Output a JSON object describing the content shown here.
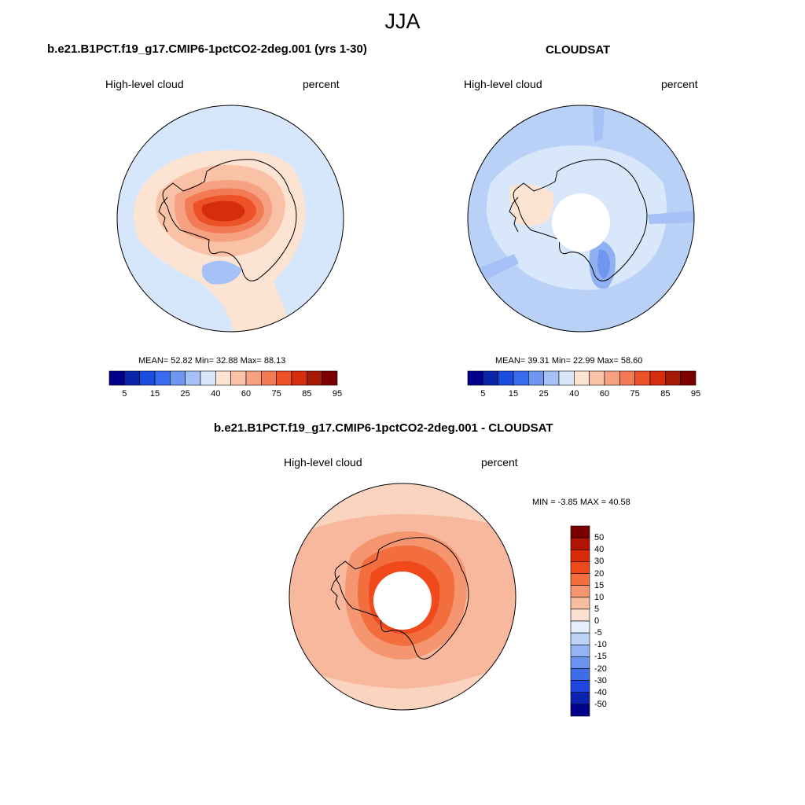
{
  "season": "JJA",
  "panels": [
    {
      "id": "model",
      "title": "b.e21.B1PCT.f19_g17.CMIP6-1pctCO2-2deg.001 (yrs 1-30)",
      "variable": "High-level cloud",
      "units": "percent",
      "stats": "MEAN=  52.82  Min=  32.88  Max=  88.13",
      "background_color": "#d6e6fb"
    },
    {
      "id": "obs",
      "title": "CLOUDSAT",
      "variable": "High-level cloud",
      "units": "percent",
      "stats": "MEAN=  39.31  Min=  22.99  Max=  58.60",
      "background_color": "#b9d1f7"
    },
    {
      "id": "diff",
      "title": "b.e21.B1PCT.f19_g17.CMIP6-1pctCO2-2deg.001 - CLOUDSAT",
      "variable": "High-level cloud",
      "units": "percent",
      "stats": "MIN =  -3.85 MAX =  40.58",
      "background_color": "#f7b89e"
    }
  ],
  "colorbar_abs": {
    "colors": [
      "#00008b",
      "#0a25a8",
      "#1a4de0",
      "#3a6cf0",
      "#6f97f2",
      "#a5c1f6",
      "#d9e7fb",
      "#fde3d2",
      "#f9c2a6",
      "#f5a182",
      "#f27b55",
      "#ec5127",
      "#d42e0e",
      "#a61a05",
      "#7a0000"
    ],
    "tick_labels": [
      "5",
      "15",
      "25",
      "40",
      "60",
      "75",
      "85",
      "95"
    ]
  },
  "colorbar_diff": {
    "colors": [
      "#7a0000",
      "#b01503",
      "#d92b0a",
      "#f04a1c",
      "#f36e3e",
      "#f59670",
      "#f8bca1",
      "#fbe0d1",
      "#e5eefc",
      "#bcd3f6",
      "#92b4f2",
      "#6a93ee",
      "#3f6cea",
      "#1f46dc",
      "#0b24b0",
      "#00008b"
    ],
    "tick_labels": [
      "50",
      "40",
      "30",
      "20",
      "15",
      "10",
      "5",
      "0",
      "-5",
      "-10",
      "-15",
      "-20",
      "-30",
      "-40",
      "-50"
    ]
  }
}
